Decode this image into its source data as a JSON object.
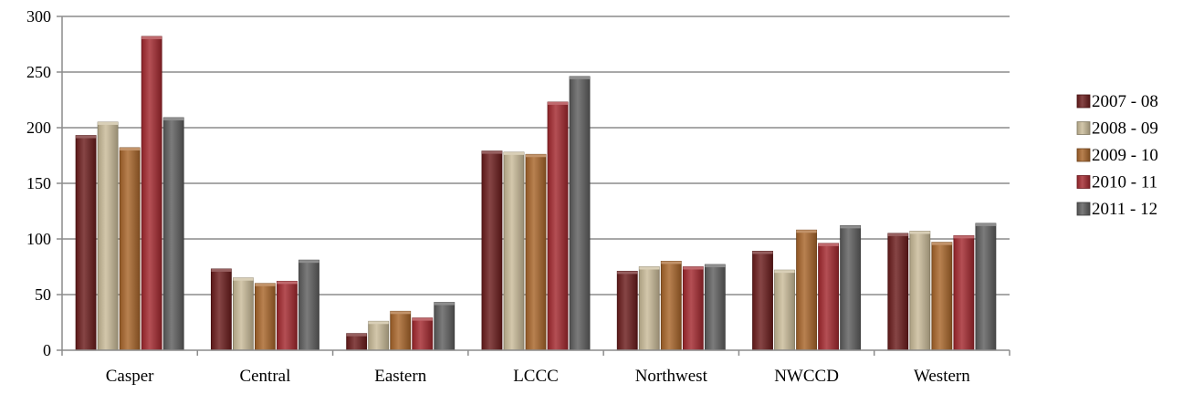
{
  "chart_data": {
    "type": "bar",
    "categories": [
      "Casper",
      "Central",
      "Eastern",
      "LCCC",
      "Northwest",
      "NWCCD",
      "Western"
    ],
    "series": [
      {
        "name": "2007 - 08",
        "color": "#6b1c1c",
        "values": [
          193,
          73,
          15,
          179,
          71,
          89,
          105
        ]
      },
      {
        "name": "2008 - 09",
        "color": "#c9bb98",
        "values": [
          205,
          65,
          26,
          178,
          75,
          72,
          107
        ]
      },
      {
        "name": "2009 - 10",
        "color": "#a8652a",
        "values": [
          182,
          60,
          35,
          176,
          80,
          108,
          97
        ]
      },
      {
        "name": "2010 - 11",
        "color": "#a3282e",
        "values": [
          282,
          62,
          29,
          223,
          75,
          96,
          103
        ]
      },
      {
        "name": "2011 - 12",
        "color": "#5e5e5e",
        "values": [
          209,
          81,
          43,
          246,
          77,
          112,
          114
        ]
      }
    ],
    "yticks": [
      "0",
      "50",
      "100",
      "150",
      "200",
      "250",
      "300"
    ],
    "ylim": [
      0,
      300
    ],
    "grid": true,
    "legend": "right"
  }
}
